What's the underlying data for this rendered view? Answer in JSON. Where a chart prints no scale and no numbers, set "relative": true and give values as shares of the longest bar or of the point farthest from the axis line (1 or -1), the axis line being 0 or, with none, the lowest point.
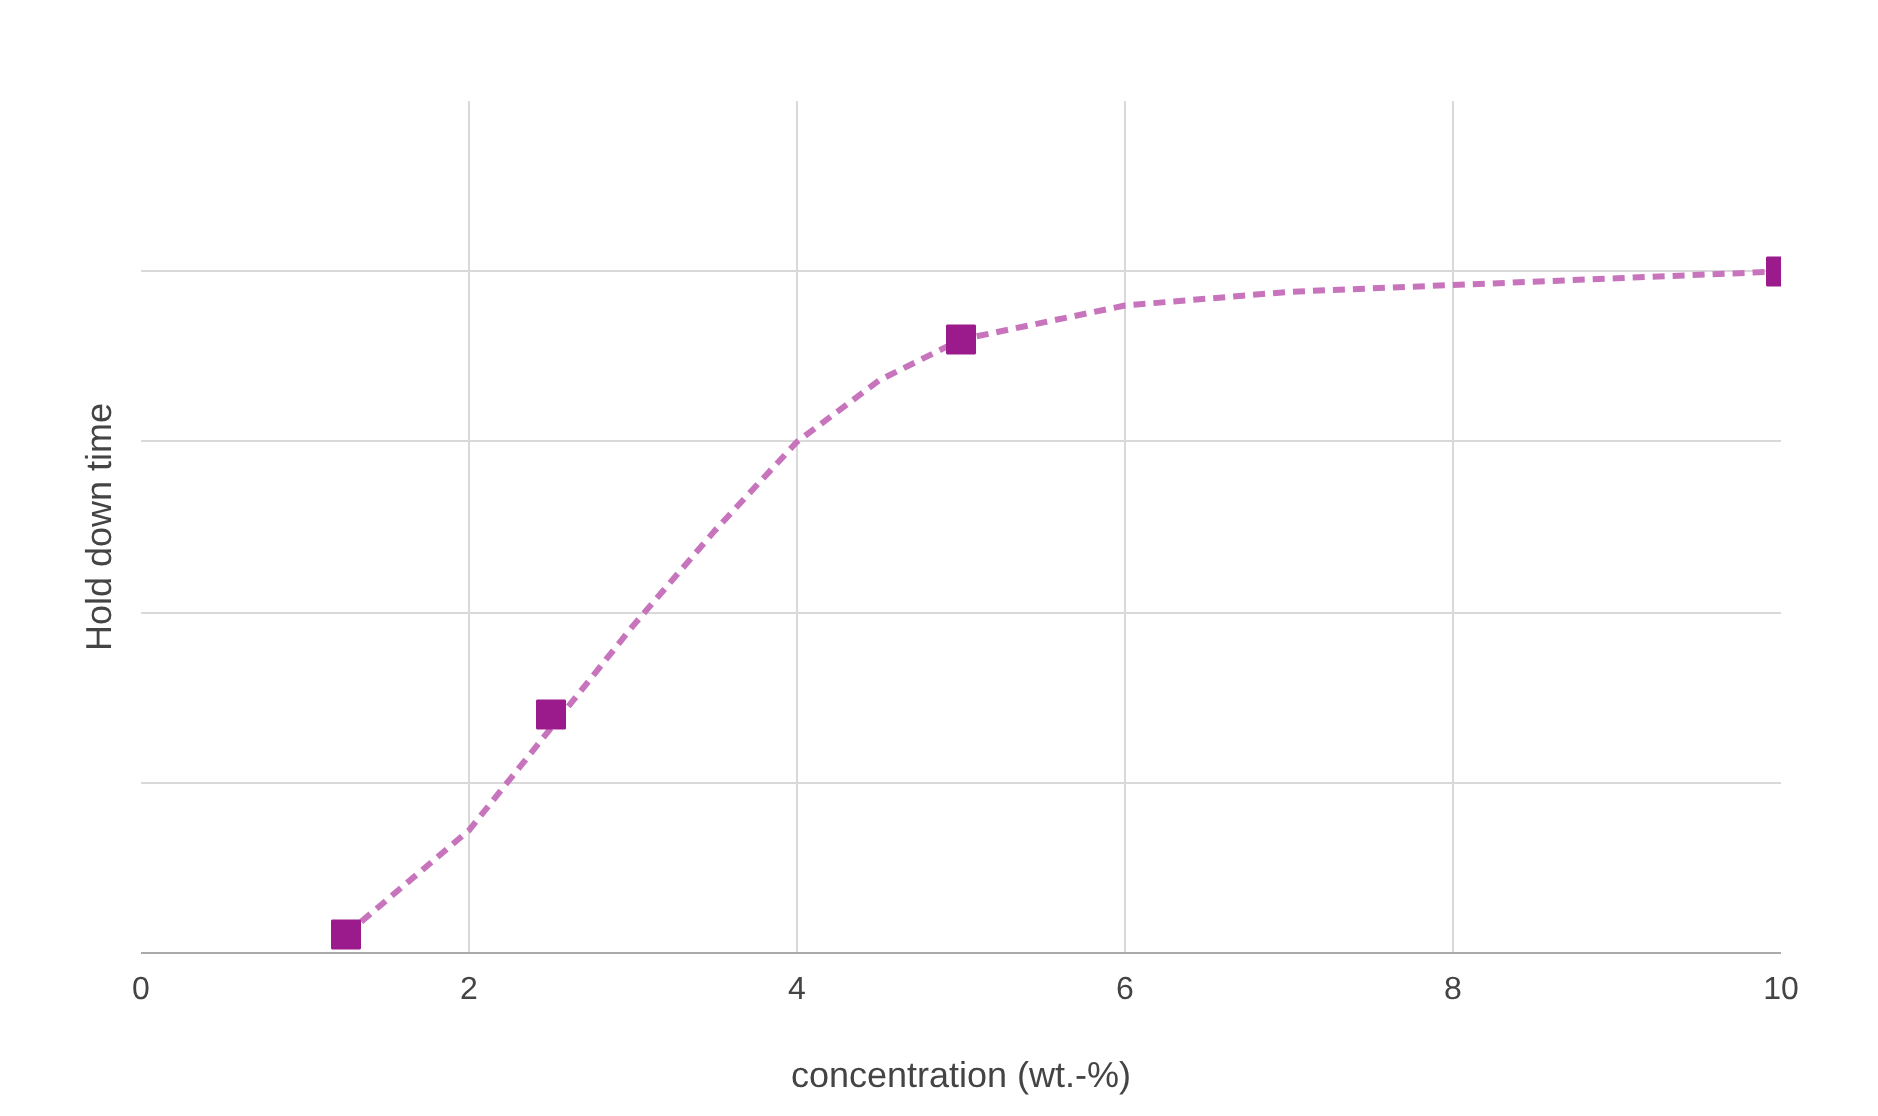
{
  "chart_data": {
    "type": "scatter",
    "xlabel": "concentration (wt.-%)",
    "ylabel": "Hold down time",
    "relative": true,
    "xlim": [
      0,
      10
    ],
    "xticks": [
      0,
      2,
      4,
      6,
      8,
      10
    ],
    "grid": true,
    "series": [
      {
        "color": "#9b1b8c",
        "marker": "square",
        "x": [
          1.25,
          2.5,
          5,
          10
        ],
        "values": [
          0.027,
          0.35,
          0.9,
          1.0
        ]
      },
      {
        "type": "line",
        "color": "#c774bd",
        "line_style": "dashed",
        "marker": "none",
        "x": [
          1.25,
          2,
          3,
          3.5,
          4,
          4.5,
          5,
          6,
          7,
          8,
          9,
          10
        ],
        "values": [
          0.027,
          0.18,
          0.48,
          0.62,
          0.75,
          0.84,
          0.9,
          0.95,
          0.97,
          0.98,
          0.99,
          1.0
        ]
      }
    ]
  }
}
